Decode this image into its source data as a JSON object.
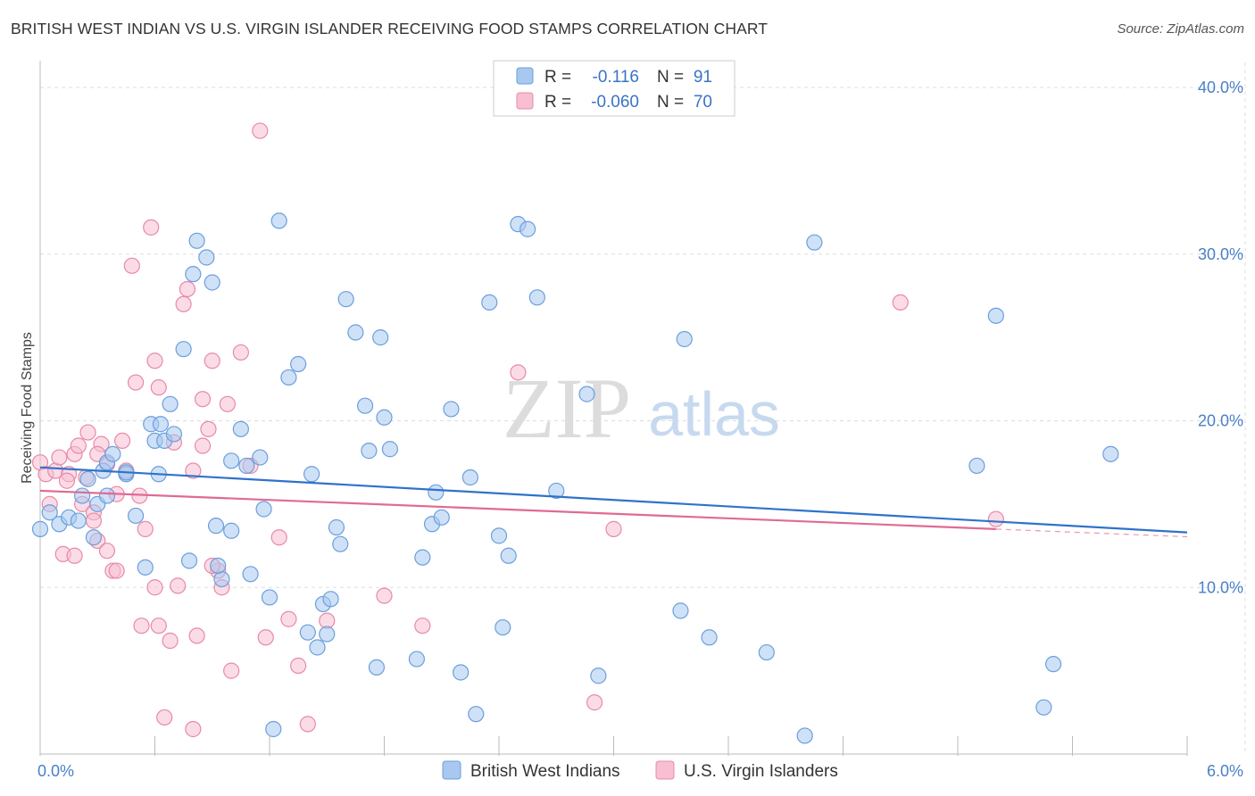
{
  "title": "BRITISH WEST INDIAN VS U.S. VIRGIN ISLANDER RECEIVING FOOD STAMPS CORRELATION CHART",
  "source": "Source: ZipAtlas.com",
  "watermark": {
    "zip": "ZIP",
    "atlas": "atlas"
  },
  "colors": {
    "blue_fill": "#a8c8f0",
    "blue_stroke": "#6b9fdc",
    "blue_line": "#2f72cc",
    "pink_fill": "#f7bfd1",
    "pink_stroke": "#e889a8",
    "pink_line": "#e06a94",
    "grid": "#dddddd",
    "tick_text": "#4a80c8"
  },
  "legend": {
    "rows": [
      {
        "r_label": "R =",
        "r_value": "-0.116",
        "n_label": "N =",
        "n_value": "91"
      },
      {
        "r_label": "R =",
        "r_value": "-0.060",
        "n_label": "N =",
        "n_value": "70"
      }
    ]
  },
  "chart_data": {
    "type": "scatter",
    "title": "BRITISH WEST INDIAN VS U.S. VIRGIN ISLANDER RECEIVING FOOD STAMPS CORRELATION CHART",
    "xlabel": "",
    "ylabel": "Receiving Food Stamps",
    "xlim": [
      0,
      6
    ],
    "ylim": [
      0,
      40
    ],
    "x_tick_labels": [
      "0.0%",
      "6.0%"
    ],
    "y_ticks": [
      10,
      20,
      30,
      40
    ],
    "y_tick_labels": [
      "10.0%",
      "20.0%",
      "30.0%",
      "40.0%"
    ],
    "grid": true,
    "legend_position": "top-center",
    "series": [
      {
        "name": "British West Indians",
        "color": "#a8c8f0",
        "r": -0.116,
        "n": 91,
        "trend": {
          "x": [
            0.0,
            6.0
          ],
          "y": [
            17.2,
            13.3
          ]
        },
        "points": [
          [
            0.0,
            13.5
          ],
          [
            0.05,
            14.5
          ],
          [
            0.1,
            13.8
          ],
          [
            0.15,
            14.2
          ],
          [
            0.2,
            14.0
          ],
          [
            0.25,
            16.5
          ],
          [
            0.3,
            15.0
          ],
          [
            0.35,
            15.5
          ],
          [
            0.28,
            13.0
          ],
          [
            0.33,
            17.0
          ],
          [
            0.35,
            17.5
          ],
          [
            0.38,
            18.0
          ],
          [
            0.45,
            16.8
          ],
          [
            0.55,
            11.2
          ],
          [
            0.5,
            14.3
          ],
          [
            0.58,
            19.8
          ],
          [
            0.6,
            18.8
          ],
          [
            0.65,
            18.8
          ],
          [
            0.63,
            19.8
          ],
          [
            0.62,
            16.8
          ],
          [
            0.68,
            21.0
          ],
          [
            0.7,
            19.2
          ],
          [
            0.75,
            24.3
          ],
          [
            0.8,
            28.8
          ],
          [
            0.82,
            30.8
          ],
          [
            0.87,
            29.8
          ],
          [
            0.9,
            28.3
          ],
          [
            0.92,
            13.7
          ],
          [
            0.95,
            10.5
          ],
          [
            0.93,
            11.3
          ],
          [
            1.0,
            17.6
          ],
          [
            1.05,
            19.5
          ],
          [
            1.08,
            17.3
          ],
          [
            1.1,
            10.8
          ],
          [
            1.15,
            17.8
          ],
          [
            1.17,
            14.7
          ],
          [
            1.2,
            9.4
          ],
          [
            1.25,
            32.0
          ],
          [
            1.3,
            22.6
          ],
          [
            1.35,
            23.4
          ],
          [
            1.4,
            7.3
          ],
          [
            1.42,
            16.8
          ],
          [
            1.45,
            6.4
          ],
          [
            1.48,
            9.0
          ],
          [
            1.5,
            7.2
          ],
          [
            1.52,
            9.3
          ],
          [
            1.55,
            13.6
          ],
          [
            1.57,
            12.6
          ],
          [
            1.6,
            27.3
          ],
          [
            1.65,
            25.3
          ],
          [
            1.7,
            20.9
          ],
          [
            1.72,
            18.2
          ],
          [
            1.76,
            5.2
          ],
          [
            1.78,
            25.0
          ],
          [
            1.8,
            20.2
          ],
          [
            1.83,
            18.3
          ],
          [
            1.97,
            5.7
          ],
          [
            2.0,
            11.8
          ],
          [
            2.05,
            13.8
          ],
          [
            2.07,
            15.7
          ],
          [
            2.1,
            14.2
          ],
          [
            2.15,
            20.7
          ],
          [
            2.2,
            4.9
          ],
          [
            2.25,
            16.6
          ],
          [
            2.28,
            2.4
          ],
          [
            2.35,
            27.1
          ],
          [
            2.4,
            13.1
          ],
          [
            2.42,
            7.6
          ],
          [
            2.45,
            11.9
          ],
          [
            2.5,
            31.8
          ],
          [
            2.55,
            31.5
          ],
          [
            2.6,
            27.4
          ],
          [
            2.7,
            15.8
          ],
          [
            2.86,
            21.6
          ],
          [
            2.92,
            4.7
          ],
          [
            3.35,
            8.6
          ],
          [
            3.37,
            24.9
          ],
          [
            3.5,
            7.0
          ],
          [
            3.8,
            6.1
          ],
          [
            4.0,
            1.1
          ],
          [
            4.05,
            30.7
          ],
          [
            4.9,
            17.3
          ],
          [
            5.0,
            26.3
          ],
          [
            5.25,
            2.8
          ],
          [
            5.3,
            5.4
          ],
          [
            5.6,
            18.0
          ],
          [
            1.22,
            1.5
          ],
          [
            0.45,
            16.9
          ],
          [
            0.22,
            15.5
          ],
          [
            1.0,
            13.4
          ],
          [
            0.78,
            11.6
          ]
        ]
      },
      {
        "name": "U.S. Virgin Islanders",
        "color": "#f7bfd1",
        "r": -0.06,
        "n": 70,
        "trend": {
          "x": [
            0.0,
            5.0
          ],
          "y": [
            15.8,
            13.5
          ]
        },
        "points": [
          [
            0.0,
            17.5
          ],
          [
            0.03,
            16.8
          ],
          [
            0.05,
            15.0
          ],
          [
            0.08,
            17.0
          ],
          [
            0.1,
            17.8
          ],
          [
            0.12,
            12.0
          ],
          [
            0.15,
            16.8
          ],
          [
            0.18,
            18.0
          ],
          [
            0.2,
            18.5
          ],
          [
            0.22,
            15.0
          ],
          [
            0.25,
            19.3
          ],
          [
            0.28,
            14.5
          ],
          [
            0.3,
            12.8
          ],
          [
            0.32,
            18.6
          ],
          [
            0.35,
            17.4
          ],
          [
            0.38,
            11.0
          ],
          [
            0.4,
            15.6
          ],
          [
            0.43,
            18.8
          ],
          [
            0.45,
            17.0
          ],
          [
            0.48,
            29.3
          ],
          [
            0.5,
            22.3
          ],
          [
            0.53,
            7.7
          ],
          [
            0.55,
            13.5
          ],
          [
            0.58,
            31.6
          ],
          [
            0.6,
            23.6
          ],
          [
            0.62,
            22.0
          ],
          [
            0.65,
            2.2
          ],
          [
            0.68,
            6.8
          ],
          [
            0.7,
            18.7
          ],
          [
            0.72,
            10.1
          ],
          [
            0.75,
            27.0
          ],
          [
            0.77,
            27.9
          ],
          [
            0.8,
            17.0
          ],
          [
            0.82,
            7.1
          ],
          [
            0.85,
            21.3
          ],
          [
            0.88,
            19.5
          ],
          [
            0.9,
            23.6
          ],
          [
            0.93,
            11.0
          ],
          [
            0.95,
            10.0
          ],
          [
            0.98,
            21.0
          ],
          [
            1.0,
            5.0
          ],
          [
            1.05,
            24.1
          ],
          [
            1.1,
            17.3
          ],
          [
            1.15,
            37.4
          ],
          [
            1.25,
            13.0
          ],
          [
            1.3,
            8.1
          ],
          [
            1.35,
            5.3
          ],
          [
            1.4,
            1.8
          ],
          [
            1.5,
            8.0
          ],
          [
            1.8,
            9.5
          ],
          [
            2.0,
            7.7
          ],
          [
            2.5,
            22.9
          ],
          [
            2.9,
            3.1
          ],
          [
            3.0,
            13.5
          ],
          [
            4.5,
            27.1
          ],
          [
            5.0,
            14.1
          ],
          [
            0.28,
            14.0
          ],
          [
            0.18,
            11.9
          ],
          [
            0.4,
            11.0
          ],
          [
            0.6,
            10.0
          ],
          [
            0.8,
            1.5
          ],
          [
            0.85,
            18.5
          ],
          [
            0.35,
            12.2
          ],
          [
            0.9,
            11.3
          ],
          [
            1.18,
            7.0
          ],
          [
            0.62,
            7.7
          ],
          [
            0.24,
            16.6
          ],
          [
            0.14,
            16.4
          ],
          [
            0.3,
            18.0
          ],
          [
            0.52,
            15.5
          ]
        ]
      }
    ]
  }
}
